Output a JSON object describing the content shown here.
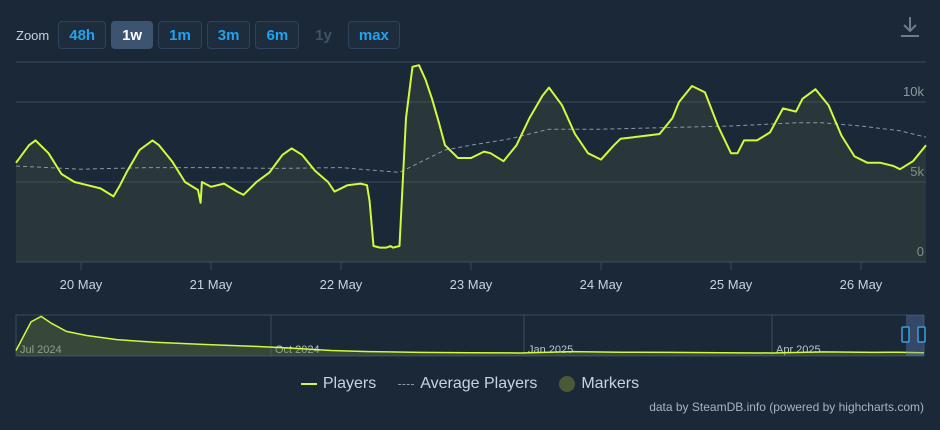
{
  "zoom": {
    "label": "Zoom",
    "buttons": [
      {
        "label": "48h",
        "state": "normal"
      },
      {
        "label": "1w",
        "state": "active"
      },
      {
        "label": "1m",
        "state": "normal"
      },
      {
        "label": "3m",
        "state": "normal"
      },
      {
        "label": "6m",
        "state": "normal"
      },
      {
        "label": "1y",
        "state": "disabled"
      },
      {
        "label": "max",
        "state": "normal"
      }
    ]
  },
  "download_icon": "download-icon",
  "legend": {
    "players": "Players",
    "average": "Average Players",
    "markers": "Markers"
  },
  "credits": "data by SteamDB.info (powered by highcharts.com)",
  "colors": {
    "background": "#1b2838",
    "players_line": "#d2f93d",
    "average_line": "#8b97a3",
    "marker": "#4b5a36",
    "grid": "#3a4b5c",
    "tick_label": "#c6d4df"
  },
  "chart_data": {
    "type": "line",
    "x_start": "2024-05-19 12:00",
    "x_end": "2024-05-26 12:00",
    "xlim_days": [
      19.5,
      26.5
    ],
    "ylim": [
      0,
      12500
    ],
    "yticks": [
      0,
      5000,
      10000
    ],
    "ytick_labels": [
      "0",
      "5k",
      "10k"
    ],
    "xticks": [
      20,
      21,
      22,
      23,
      24,
      25,
      26
    ],
    "xtick_labels": [
      "20 May",
      "21 May",
      "22 May",
      "23 May",
      "24 May",
      "25 May",
      "26 May"
    ],
    "grid": true,
    "legend_position": "bottom-center",
    "series": [
      {
        "name": "Players",
        "x": [
          19.5,
          19.6,
          19.65,
          19.75,
          19.85,
          19.95,
          20.05,
          20.15,
          20.25,
          20.3,
          20.35,
          20.45,
          20.55,
          20.6,
          20.7,
          20.8,
          20.9,
          20.92,
          20.93,
          21.0,
          21.1,
          21.2,
          21.25,
          21.35,
          21.45,
          21.55,
          21.62,
          21.7,
          21.8,
          21.9,
          21.95,
          22.05,
          22.15,
          22.2,
          22.22,
          22.25,
          22.3,
          22.35,
          22.38,
          22.4,
          22.45,
          22.5,
          22.55,
          22.6,
          22.65,
          22.7,
          22.75,
          22.8,
          22.9,
          23.0,
          23.1,
          23.15,
          23.25,
          23.35,
          23.45,
          23.55,
          23.6,
          23.7,
          23.8,
          23.9,
          24.0,
          24.1,
          24.15,
          24.25,
          24.35,
          24.45,
          24.55,
          24.6,
          24.7,
          24.8,
          24.9,
          25.0,
          25.05,
          25.1,
          25.2,
          25.3,
          25.4,
          25.5,
          25.55,
          25.65,
          25.75,
          25.85,
          25.95,
          26.05,
          26.15,
          26.25,
          26.3,
          26.4,
          26.5
        ],
        "values": [
          6200,
          7300,
          7600,
          6800,
          5500,
          5000,
          4800,
          4600,
          4100,
          4800,
          5600,
          7000,
          7600,
          7300,
          6300,
          5000,
          4500,
          3700,
          5000,
          4700,
          4900,
          4400,
          4200,
          5000,
          5600,
          6700,
          7100,
          6700,
          5700,
          5000,
          4400,
          4800,
          4900,
          4800,
          3800,
          1000,
          900,
          900,
          1000,
          900,
          1000,
          9000,
          12200,
          12300,
          11400,
          10200,
          8800,
          7300,
          6500,
          6500,
          6900,
          6800,
          6300,
          7300,
          9000,
          10400,
          10900,
          9800,
          8000,
          6800,
          6400,
          7300,
          7700,
          7800,
          7900,
          8000,
          9000,
          10000,
          11000,
          10600,
          8500,
          6800,
          6800,
          7600,
          7600,
          8100,
          9600,
          9400,
          10200,
          10800,
          9800,
          7900,
          6600,
          6200,
          6200,
          6000,
          5800,
          6300,
          7300
        ]
      },
      {
        "name": "Average Players",
        "x": [
          19.5,
          20.0,
          20.5,
          21.0,
          21.5,
          22.0,
          22.3,
          22.45,
          22.6,
          22.8,
          23.0,
          23.3,
          23.6,
          24.0,
          24.5,
          25.0,
          25.5,
          25.7,
          26.0,
          26.3,
          26.5
        ],
        "values": [
          6000,
          5800,
          5900,
          5900,
          5850,
          5900,
          5700,
          5600,
          6200,
          7000,
          7300,
          7700,
          8300,
          8300,
          8400,
          8500,
          8700,
          8700,
          8500,
          8200,
          7800
        ]
      }
    ],
    "navigator": {
      "tick_labels": [
        "Jul 2024",
        "Oct 2024",
        "Jan 2025",
        "Apr 2025"
      ],
      "x_start": "2024-06-01",
      "x_end": "2025-05-27",
      "x_days": [
        0,
        6,
        10,
        14,
        20,
        28,
        40,
        55,
        75,
        95,
        110,
        125,
        140,
        160,
        180,
        200,
        220,
        240,
        260,
        280,
        300,
        320,
        340,
        350,
        360
      ],
      "values": [
        2000,
        12500,
        14500,
        12000,
        9000,
        7500,
        6000,
        5000,
        4200,
        3500,
        2800,
        2000,
        1600,
        1300,
        1200,
        1100,
        1600,
        1400,
        1300,
        1200,
        1100,
        1500,
        1300,
        1400,
        1200
      ]
    }
  }
}
